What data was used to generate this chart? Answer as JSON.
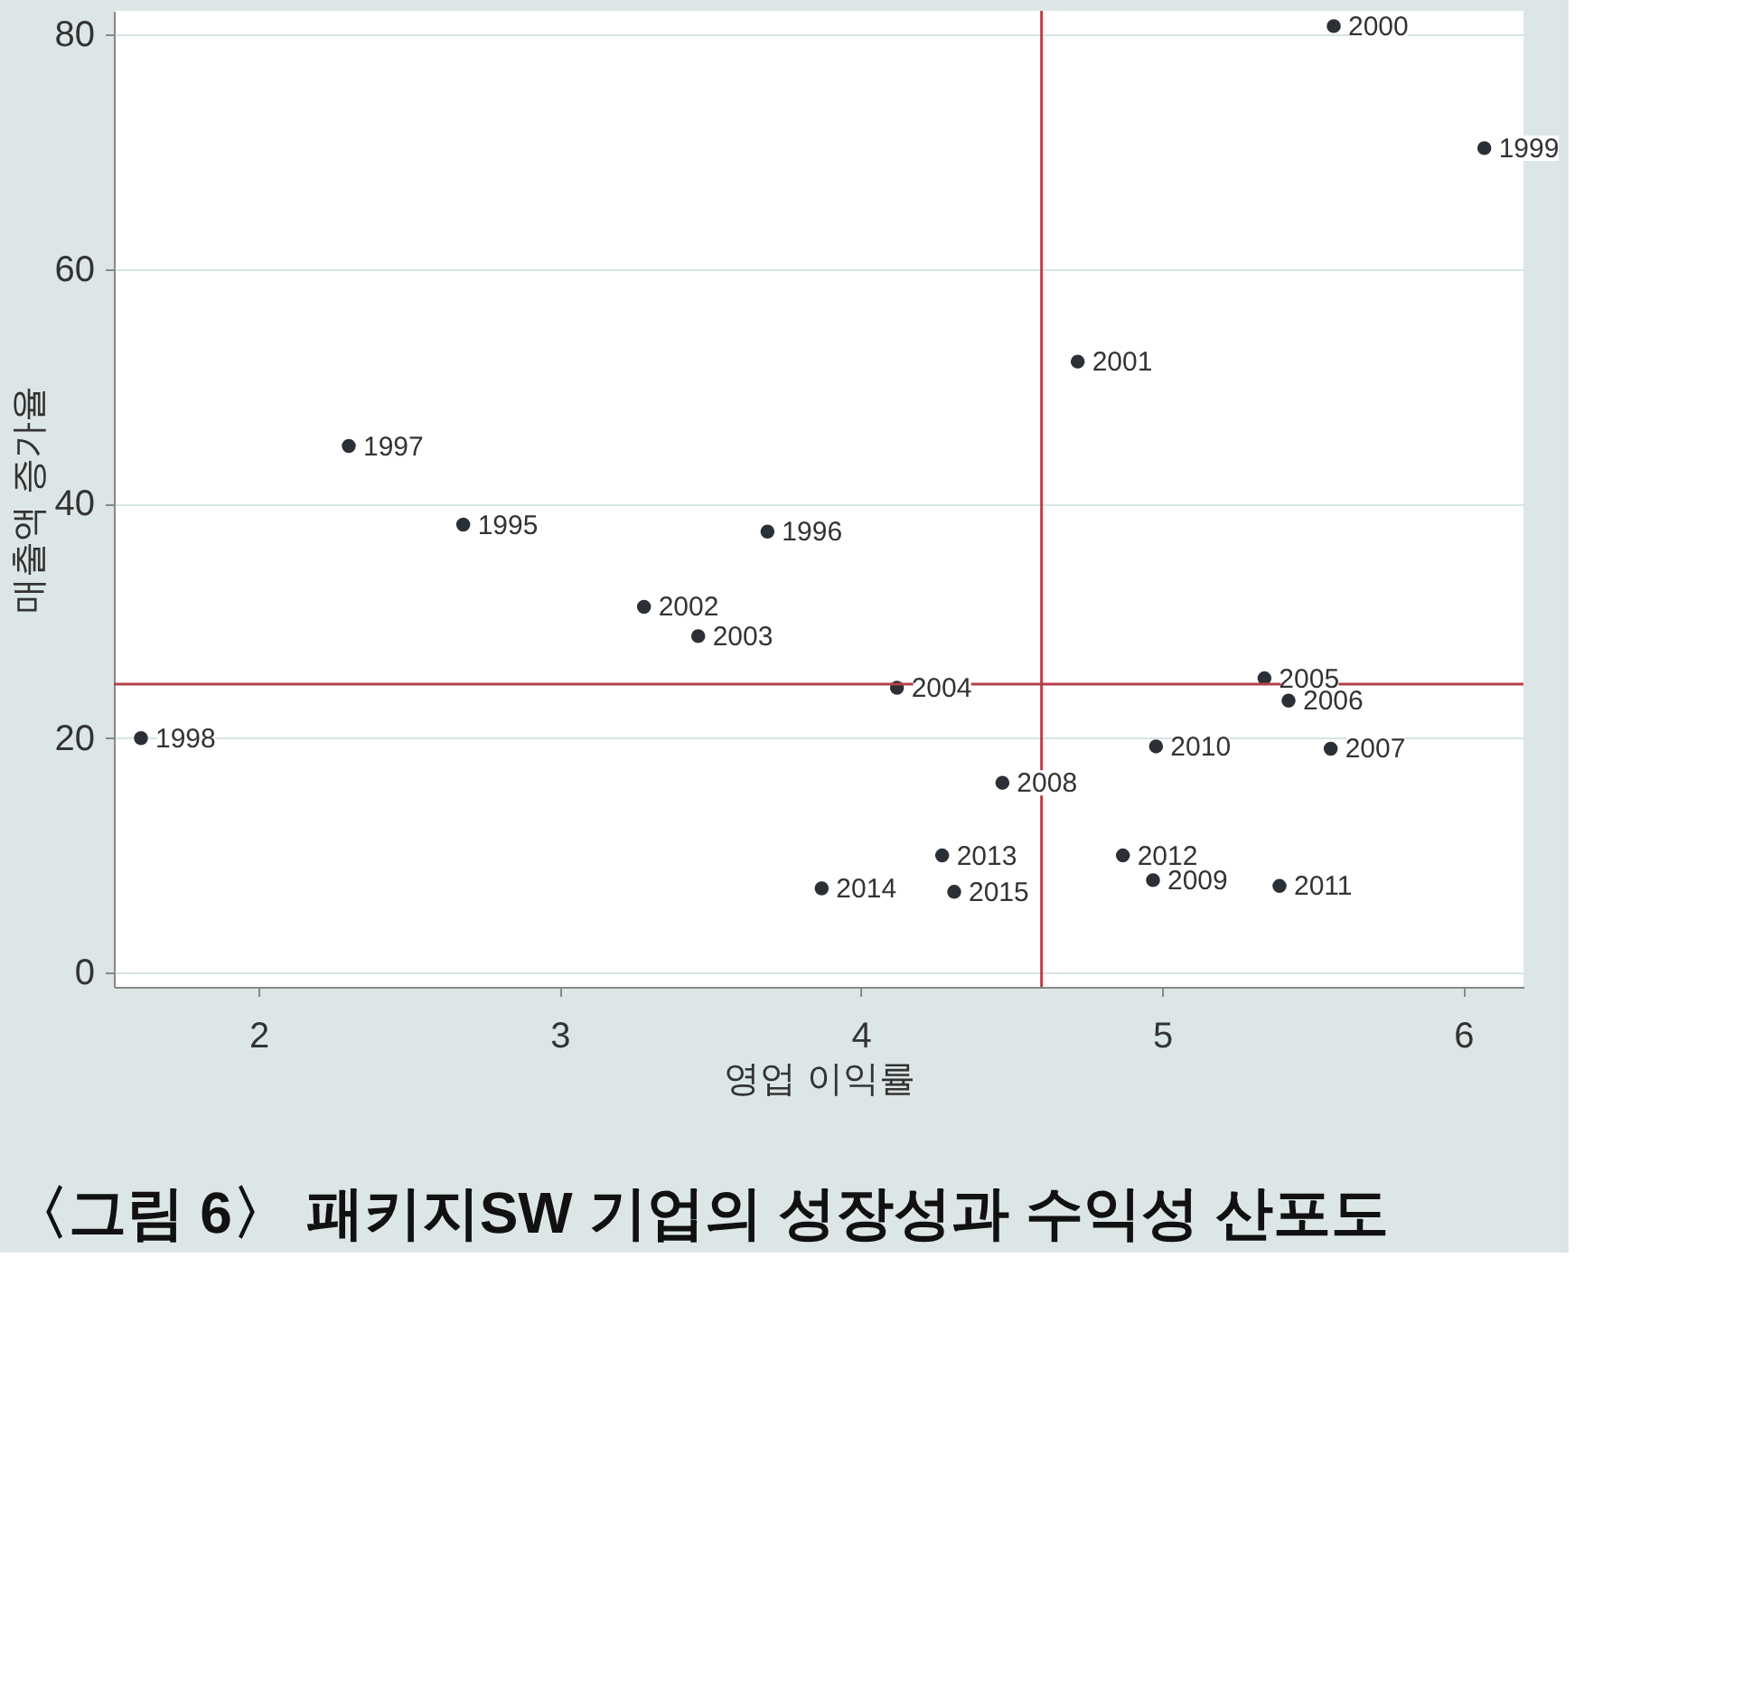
{
  "chart_data": {
    "type": "scatter",
    "title": "〈그림 6〉 패키지SW 기업의 성장성과 수익성 산포도",
    "xlabel": "영업 이익률",
    "ylabel": "매출액 증가율",
    "x": [
      1.61,
      2.3,
      2.68,
      3.69,
      3.28,
      3.46,
      4.12,
      5.57,
      6.07,
      4.72,
      5.34,
      5.42,
      4.98,
      5.56,
      4.47,
      4.27,
      4.87,
      4.97,
      5.39,
      3.87,
      4.31
    ],
    "series": [
      {
        "color": "#2b2f36",
        "values": [
          20.0,
          44.9,
          38.2,
          37.6,
          31.2,
          28.7,
          24.3,
          80.7,
          70.3,
          52.1,
          25.1,
          23.2,
          19.3,
          19.1,
          16.2,
          10.0,
          10.0,
          7.9,
          7.4,
          7.2,
          6.9
        ]
      }
    ],
    "annotations": [
      {
        "text": "1998",
        "x": 1.61,
        "y": 20.0
      },
      {
        "text": "1997",
        "x": 2.3,
        "y": 44.9
      },
      {
        "text": "1995",
        "x": 2.68,
        "y": 38.2
      },
      {
        "text": "1996",
        "x": 3.69,
        "y": 37.6
      },
      {
        "text": "2002",
        "x": 3.28,
        "y": 31.2
      },
      {
        "text": "2003",
        "x": 3.46,
        "y": 28.7
      },
      {
        "text": "2004",
        "x": 4.12,
        "y": 24.3
      },
      {
        "text": "2000",
        "x": 5.57,
        "y": 80.7
      },
      {
        "text": "1999",
        "x": 6.07,
        "y": 70.3
      },
      {
        "text": "2001",
        "x": 4.72,
        "y": 52.1
      },
      {
        "text": "2005",
        "x": 5.34,
        "y": 25.1
      },
      {
        "text": "2006",
        "x": 5.42,
        "y": 23.2
      },
      {
        "text": "2010",
        "x": 4.98,
        "y": 19.3
      },
      {
        "text": "2007",
        "x": 5.56,
        "y": 19.1
      },
      {
        "text": "2008",
        "x": 4.47,
        "y": 16.2
      },
      {
        "text": "2013",
        "x": 4.27,
        "y": 10.0
      },
      {
        "text": "2012",
        "x": 4.87,
        "y": 10.0
      },
      {
        "text": "2009",
        "x": 4.97,
        "y": 7.9
      },
      {
        "text": "2011",
        "x": 5.39,
        "y": 7.4
      },
      {
        "text": "2014",
        "x": 3.87,
        "y": 7.2
      },
      {
        "text": "2015",
        "x": 4.31,
        "y": 6.9
      }
    ],
    "xlim": [
      1.52,
      6.2
    ],
    "ylim": [
      -1.2,
      82
    ],
    "xticks": [
      2,
      3,
      4,
      5,
      6
    ],
    "yticks": [
      0,
      20,
      40,
      60,
      80
    ],
    "ref_lines": [
      {
        "axis": "x",
        "value": 4.6,
        "color": "#b5404a"
      },
      {
        "axis": "y",
        "value": 24.6,
        "color": "#b5404a"
      }
    ],
    "grid": "y",
    "marker": "circle"
  }
}
